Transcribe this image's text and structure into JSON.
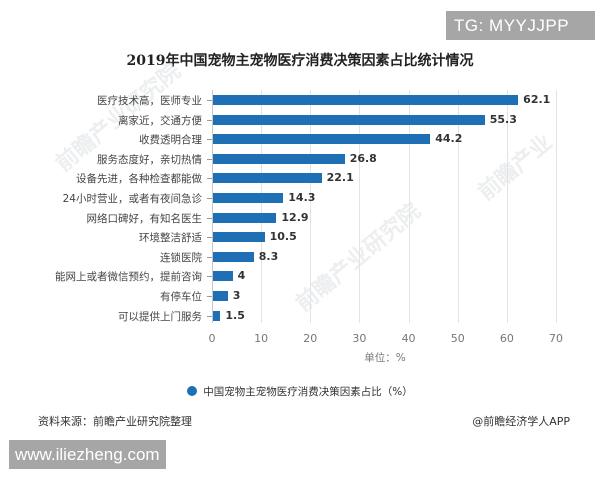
{
  "badges": {
    "top_right": "TG: MYYJJPP",
    "bottom_left": "www.iliezheng.com"
  },
  "colors": {
    "bar": "#1f6fb5",
    "grid": "#e3e3e3",
    "badge_bg": "#a6a6a6"
  },
  "chart_data": {
    "type": "bar",
    "orientation": "horizontal",
    "title": "2019年中国宠物主宠物医疗消费决策因素占比统计情况",
    "categories": [
      "医疗技术高，医师专业",
      "离家近，交通方便",
      "收费透明合理",
      "服务态度好，亲切热情",
      "设备先进，各种检查都能做",
      "24小时营业，或者有夜间急诊",
      "网络口碑好，有知名医生",
      "环境整洁舒适",
      "连锁医院",
      "能网上或者微信预约，提前咨询",
      "有停车位",
      "可以提供上门服务"
    ],
    "values": [
      62.1,
      55.3,
      44.2,
      26.8,
      22.1,
      14.3,
      12.9,
      10.5,
      8.3,
      4,
      3,
      1.5
    ],
    "value_labels": [
      "62.1",
      "55.3",
      "44.2",
      "26.8",
      "22.1",
      "14.3",
      "12.9",
      "10.5",
      "8.3",
      "4",
      "3",
      "1.5"
    ],
    "series": [
      {
        "name": "中国宠物主宠物医疗消费决策因素占比（%）",
        "values": [
          62.1,
          55.3,
          44.2,
          26.8,
          22.1,
          14.3,
          12.9,
          10.5,
          8.3,
          4,
          3,
          1.5
        ]
      }
    ],
    "xlabel": "单位：%",
    "ylabel": "",
    "xlim": [
      0,
      70
    ],
    "xticks": [
      "0",
      "10",
      "20",
      "30",
      "40",
      "50",
      "60",
      "70"
    ],
    "grid": true,
    "legend_position": "bottom",
    "legend": [
      "中国宠物主宠物医疗消费决策因素占比（%）"
    ]
  },
  "legend": {
    "label": "中国宠物主宠物医疗消费决策因素占比（%）"
  },
  "footer": {
    "source": "资料来源：前瞻产业研究院整理",
    "credit": "@前瞻经济学人APP"
  }
}
